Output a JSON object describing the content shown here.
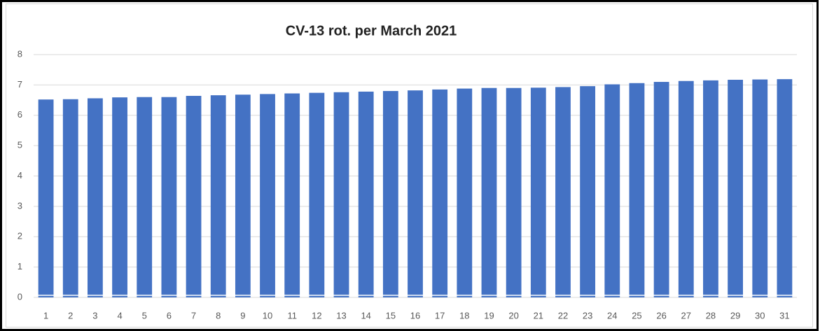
{
  "chart_data": {
    "type": "bar",
    "title": "CV-13 rot. per March 2021",
    "categories": [
      1,
      2,
      3,
      4,
      5,
      6,
      7,
      8,
      9,
      10,
      11,
      12,
      13,
      14,
      15,
      16,
      17,
      18,
      19,
      20,
      21,
      22,
      23,
      24,
      25,
      26,
      27,
      28,
      29,
      30,
      31
    ],
    "values": [
      6.52,
      6.53,
      6.56,
      6.59,
      6.6,
      6.6,
      6.64,
      6.66,
      6.68,
      6.7,
      6.72,
      6.74,
      6.76,
      6.78,
      6.8,
      6.82,
      6.85,
      6.88,
      6.9,
      6.9,
      6.91,
      6.93,
      6.96,
      7.02,
      7.06,
      7.1,
      7.13,
      7.15,
      7.17,
      7.18,
      7.19
    ],
    "color": "#4472c4",
    "ylim": [
      0,
      8
    ],
    "yticks": [
      0,
      1,
      2,
      3,
      4,
      5,
      6,
      7,
      8
    ],
    "grid": true
  }
}
